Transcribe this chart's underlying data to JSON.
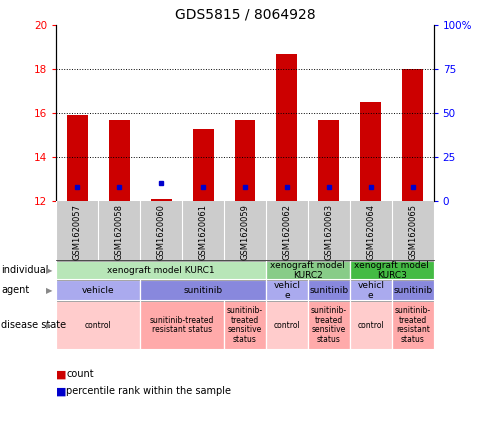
{
  "title": "GDS5815 / 8064928",
  "samples": [
    "GSM1620057",
    "GSM1620058",
    "GSM1620060",
    "GSM1620061",
    "GSM1620059",
    "GSM1620062",
    "GSM1620063",
    "GSM1620064",
    "GSM1620065"
  ],
  "bar_values": [
    15.9,
    15.7,
    12.1,
    15.3,
    15.7,
    18.7,
    15.7,
    16.5,
    18.0
  ],
  "bar_bottom": 12.0,
  "percentile_values": [
    12.65,
    12.65,
    12.8,
    12.65,
    12.65,
    12.65,
    12.65,
    12.65,
    12.65
  ],
  "ylim_left": [
    12,
    20
  ],
  "ylim_right": [
    0,
    100
  ],
  "yticks_left": [
    12,
    14,
    16,
    18,
    20
  ],
  "yticks_right": [
    0,
    25,
    50,
    75,
    100
  ],
  "ytick_labels_right": [
    "0",
    "25",
    "50",
    "75",
    "100%"
  ],
  "bar_color": "#cc0000",
  "percentile_color": "#0000cc",
  "xtick_bg": "#dddddd",
  "individual_row": {
    "spans": [
      {
        "start": 0,
        "end": 5,
        "label": "xenograft model KURC1",
        "color": "#b8e6b8"
      },
      {
        "start": 5,
        "end": 7,
        "label": "xenograft model\nKURC2",
        "color": "#88cc88"
      },
      {
        "start": 7,
        "end": 9,
        "label": "xenograft model\nKURC3",
        "color": "#44bb44"
      }
    ]
  },
  "agent_row": {
    "spans": [
      {
        "start": 0,
        "end": 2,
        "label": "vehicle",
        "color": "#aaaaee"
      },
      {
        "start": 2,
        "end": 5,
        "label": "sunitinib",
        "color": "#8888dd"
      },
      {
        "start": 5,
        "end": 6,
        "label": "vehicl\ne",
        "color": "#aaaaee"
      },
      {
        "start": 6,
        "end": 7,
        "label": "sunitinib",
        "color": "#8888dd"
      },
      {
        "start": 7,
        "end": 8,
        "label": "vehicl\ne",
        "color": "#aaaaee"
      },
      {
        "start": 8,
        "end": 9,
        "label": "sunitinib",
        "color": "#8888dd"
      }
    ]
  },
  "disease_row": {
    "spans": [
      {
        "start": 0,
        "end": 2,
        "label": "control",
        "color": "#ffcccc"
      },
      {
        "start": 2,
        "end": 4,
        "label": "sunitinib-treated\nresistant status",
        "color": "#ffaaaa"
      },
      {
        "start": 4,
        "end": 5,
        "label": "sunitinib-\ntreated\nsensitive\nstatus",
        "color": "#ffaaaa"
      },
      {
        "start": 5,
        "end": 6,
        "label": "control",
        "color": "#ffcccc"
      },
      {
        "start": 6,
        "end": 7,
        "label": "sunitinib-\ntreated\nsensitive\nstatus",
        "color": "#ffaaaa"
      },
      {
        "start": 7,
        "end": 8,
        "label": "control",
        "color": "#ffcccc"
      },
      {
        "start": 8,
        "end": 9,
        "label": "sunitinib-\ntreated\nresistant\nstatus",
        "color": "#ffaaaa"
      }
    ]
  },
  "row_labels": [
    "individual",
    "agent",
    "disease state"
  ],
  "legend_items": [
    {
      "label": "count",
      "color": "#cc0000"
    },
    {
      "label": "percentile rank within the sample",
      "color": "#0000cc"
    }
  ]
}
